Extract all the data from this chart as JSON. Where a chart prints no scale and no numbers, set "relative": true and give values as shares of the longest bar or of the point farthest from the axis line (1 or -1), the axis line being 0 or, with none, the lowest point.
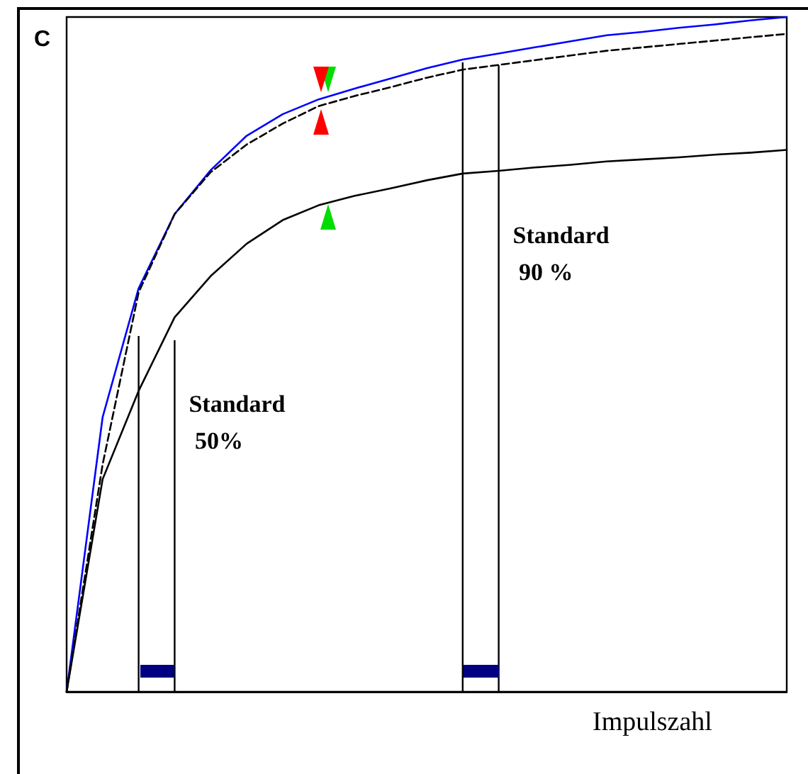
{
  "chart_data": {
    "type": "line",
    "relative": true,
    "ylabel": "C",
    "xlabel": "Impulszahl",
    "categories": [
      null,
      null,
      null,
      null,
      null,
      null,
      null,
      null,
      null,
      null,
      null,
      null,
      null,
      null,
      null,
      null,
      null,
      null,
      null,
      null,
      null
    ],
    "tick_labels": false,
    "marker": "none",
    "grid": false,
    "series": [
      {
        "color": "#0000ff",
        "line_style": "solid",
        "values": [
          0,
          0.407,
          0.598,
          0.708,
          0.773,
          0.824,
          0.856,
          0.878,
          0.894,
          0.909,
          0.924,
          0.937,
          0.946,
          0.955,
          0.964,
          0.973,
          0.978,
          0.984,
          0.989,
          0.995,
          1.0
        ]
      },
      {
        "color": "#000000",
        "line_style": "dashed",
        "values": [
          0,
          0.337,
          0.592,
          0.708,
          0.77,
          0.811,
          0.842,
          0.868,
          0.883,
          0.896,
          0.91,
          0.922,
          0.929,
          0.936,
          0.943,
          0.95,
          0.955,
          0.96,
          0.965,
          0.97,
          0.975
        ]
      },
      {
        "color": "#000000",
        "line_style": "solid",
        "values": [
          0,
          0.315,
          0.446,
          0.555,
          0.616,
          0.664,
          0.699,
          0.721,
          0.735,
          0.746,
          0.758,
          0.768,
          0.772,
          0.777,
          0.781,
          0.786,
          0.789,
          0.792,
          0.796,
          0.799,
          0.803
        ]
      }
    ],
    "annotations": [
      "Standard 50%",
      "Standard 90 %"
    ]
  }
}
